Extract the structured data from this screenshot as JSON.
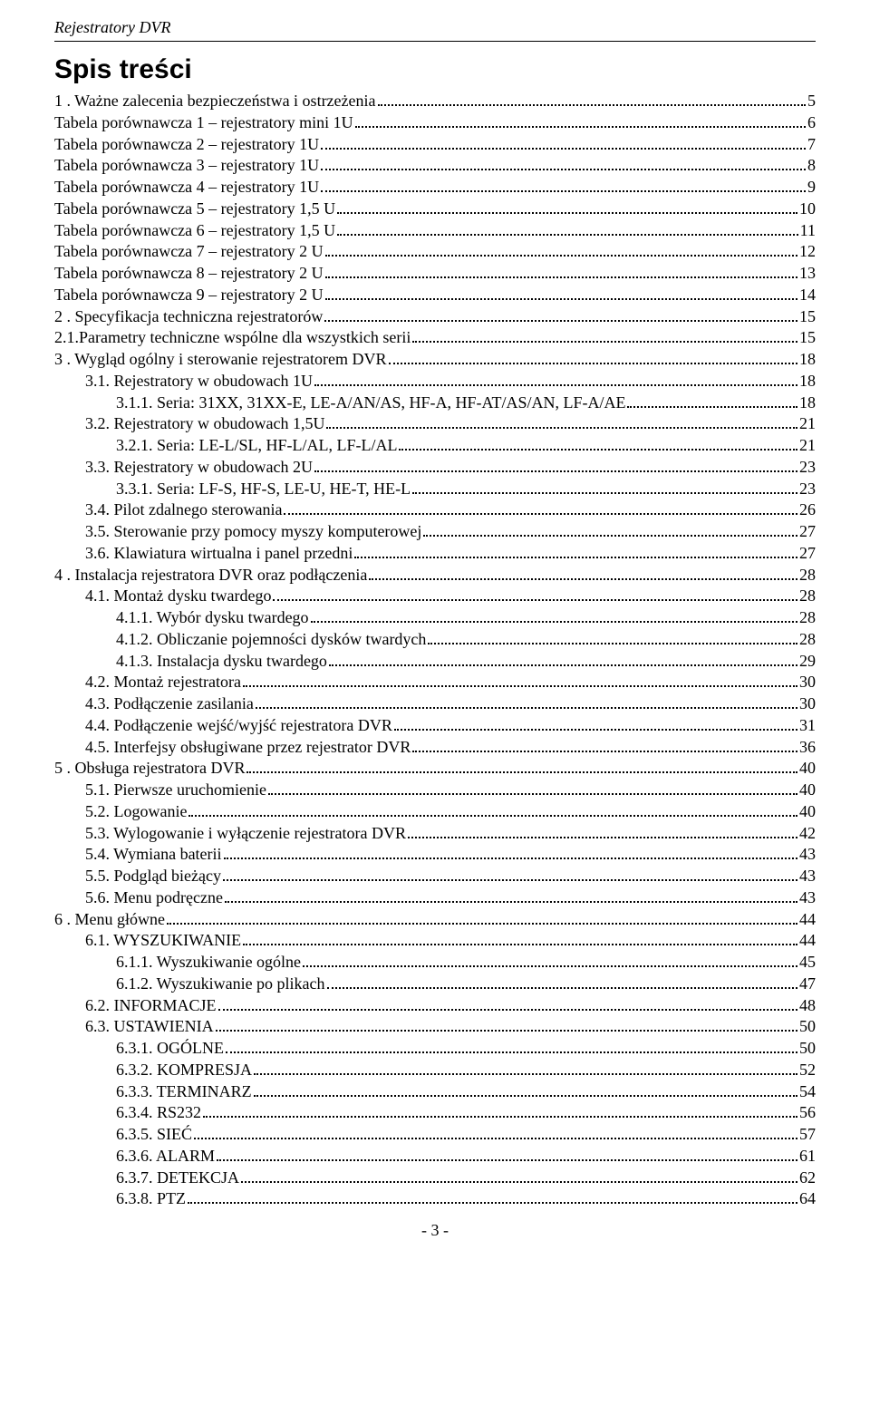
{
  "header": "Rejestratory DVR",
  "title": "Spis treści",
  "footer": "-  3  -",
  "toc": [
    {
      "indent": 0,
      "title": "1 . Ważne zalecenia bezpieczeństwa i ostrzeżenia",
      "page": "5"
    },
    {
      "indent": 0,
      "title": "Tabela porównawcza 1 – rejestratory mini 1U",
      "page": "6"
    },
    {
      "indent": 0,
      "title": "Tabela porównawcza 2 – rejestratory 1U",
      "page": "7"
    },
    {
      "indent": 0,
      "title": "Tabela porównawcza 3 – rejestratory 1U",
      "page": "8"
    },
    {
      "indent": 0,
      "title": "Tabela porównawcza 4 – rejestratory 1U",
      "page": "9"
    },
    {
      "indent": 0,
      "title": "Tabela porównawcza 5 – rejestratory 1,5 U",
      "page": "10"
    },
    {
      "indent": 0,
      "title": "Tabela porównawcza 6 – rejestratory 1,5 U",
      "page": "11"
    },
    {
      "indent": 0,
      "title": "Tabela porównawcza 7 – rejestratory 2 U",
      "page": "12"
    },
    {
      "indent": 0,
      "title": "Tabela porównawcza 8 – rejestratory 2 U",
      "page": "13"
    },
    {
      "indent": 0,
      "title": "Tabela porównawcza 9 – rejestratory 2 U",
      "page": "14"
    },
    {
      "indent": 0,
      "title": "2 . Specyfikacja techniczna rejestratorów",
      "page": "15"
    },
    {
      "indent": 0,
      "title": "2.1.Parametry techniczne wspólne dla wszystkich serii",
      "page": "15"
    },
    {
      "indent": 0,
      "title": "3 . Wygląd ogólny i sterowanie rejestratorem DVR",
      "page": "18"
    },
    {
      "indent": 1,
      "title": "3.1. Rejestratory w obudowach 1U",
      "page": "18"
    },
    {
      "indent": 2,
      "title": "3.1.1. Seria: 31XX, 31XX-E, LE-A/AN/AS, HF-A, HF-AT/AS/AN, LF-A/AE",
      "page": "18"
    },
    {
      "indent": 1,
      "title": "3.2. Rejestratory w obudowach 1,5U",
      "page": "21"
    },
    {
      "indent": 2,
      "title": "3.2.1. Seria: LE-L/SL, HF-L/AL, LF-L/AL",
      "page": "21"
    },
    {
      "indent": 1,
      "title": "3.3. Rejestratory w obudowach 2U",
      "page": "23"
    },
    {
      "indent": 2,
      "title": "3.3.1. Seria: LF-S, HF-S, LE-U, HE-T, HE-L",
      "page": "23"
    },
    {
      "indent": 1,
      "title": "3.4. Pilot zdalnego sterowania",
      "page": "26"
    },
    {
      "indent": 1,
      "title": "3.5. Sterowanie przy pomocy myszy komputerowej",
      "page": "27"
    },
    {
      "indent": 1,
      "title": "3.6. Klawiatura wirtualna i panel przedni",
      "page": "27"
    },
    {
      "indent": 0,
      "title": "4 . Instalacja rejestratora DVR oraz podłączenia",
      "page": "28"
    },
    {
      "indent": 1,
      "title": "4.1. Montaż dysku twardego",
      "page": "28"
    },
    {
      "indent": 2,
      "title": "4.1.1. Wybór dysku twardego",
      "page": "28"
    },
    {
      "indent": 2,
      "title": "4.1.2. Obliczanie pojemności dysków twardych",
      "page": "28"
    },
    {
      "indent": 2,
      "title": "4.1.3. Instalacja dysku twardego",
      "page": "29"
    },
    {
      "indent": 1,
      "title": "4.2. Montaż rejestratora",
      "page": "30"
    },
    {
      "indent": 1,
      "title": "4.3. Podłączenie zasilania",
      "page": "30"
    },
    {
      "indent": 1,
      "title": "4.4. Podłączenie wejść/wyjść rejestratora DVR",
      "page": "31"
    },
    {
      "indent": 1,
      "title": "4.5. Interfejsy obsługiwane przez rejestrator DVR",
      "page": "36"
    },
    {
      "indent": 0,
      "title": "5 . Obsługa rejestratora DVR",
      "page": "40"
    },
    {
      "indent": 1,
      "title": "5.1. Pierwsze uruchomienie",
      "page": "40"
    },
    {
      "indent": 1,
      "title": "5.2. Logowanie",
      "page": "40"
    },
    {
      "indent": 1,
      "title": "5.3. Wylogowanie i wyłączenie rejestratora DVR",
      "page": "42"
    },
    {
      "indent": 1,
      "title": "5.4. Wymiana baterii",
      "page": "43"
    },
    {
      "indent": 1,
      "title": "5.5. Podgląd bieżący",
      "page": "43"
    },
    {
      "indent": 1,
      "title": "5.6. Menu podręczne",
      "page": "43"
    },
    {
      "indent": 0,
      "title": "6 . Menu główne",
      "page": "44"
    },
    {
      "indent": 1,
      "title": "6.1. WYSZUKIWANIE",
      "page": "44"
    },
    {
      "indent": 2,
      "title": "6.1.1. Wyszukiwanie ogólne",
      "page": "45"
    },
    {
      "indent": 2,
      "title": "6.1.2. Wyszukiwanie po plikach",
      "page": "47"
    },
    {
      "indent": 1,
      "title": "6.2. INFORMACJE",
      "page": "48"
    },
    {
      "indent": 1,
      "title": "6.3. USTAWIENIA",
      "page": "50"
    },
    {
      "indent": 2,
      "title": "6.3.1. OGÓLNE",
      "page": "50"
    },
    {
      "indent": 2,
      "title": "6.3.2. KOMPRESJA",
      "page": "52"
    },
    {
      "indent": 2,
      "title": "6.3.3. TERMINARZ",
      "page": "54"
    },
    {
      "indent": 2,
      "title": "6.3.4. RS232",
      "page": "56"
    },
    {
      "indent": 2,
      "title": "6.3.5. SIEĆ",
      "page": "57"
    },
    {
      "indent": 2,
      "title": "6.3.6. ALARM",
      "page": "61"
    },
    {
      "indent": 2,
      "title": "6.3.7. DETEKCJA",
      "page": "62"
    },
    {
      "indent": 2,
      "title": "6.3.8. PTZ",
      "page": "64"
    }
  ]
}
